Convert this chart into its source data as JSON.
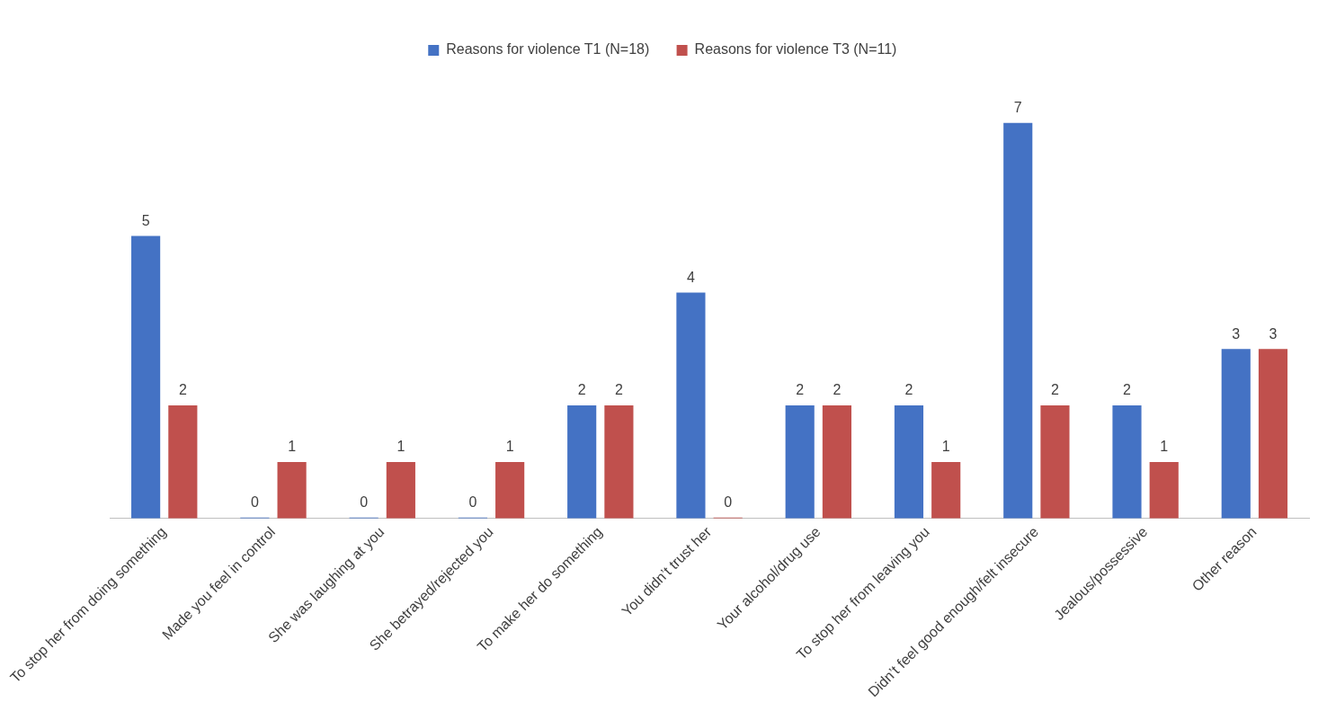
{
  "chart_data": {
    "type": "bar",
    "categories": [
      "To stop her from doing something",
      "Made you feel in control",
      "She was laughing at you",
      "She betrayed/rejected you",
      "To make her do something",
      "You didn’t trust her",
      "Your alcohol/drug use",
      "To stop her from leaving you",
      "Didn’t feel good enough/felt insecure",
      "Jealous/possessive",
      "Other reason"
    ],
    "series": [
      {
        "name": "Reasons for violence T1 (N=18)",
        "color": "#4472c4",
        "values": [
          5,
          0,
          0,
          0,
          2,
          4,
          2,
          2,
          7,
          2,
          3
        ]
      },
      {
        "name": "Reasons for violence T3 (N=11)",
        "color": "#c0504d",
        "values": [
          2,
          1,
          1,
          1,
          2,
          0,
          2,
          1,
          2,
          1,
          3
        ]
      }
    ],
    "relative": false,
    "data_labels": true,
    "legend": "top",
    "grid": false
  }
}
